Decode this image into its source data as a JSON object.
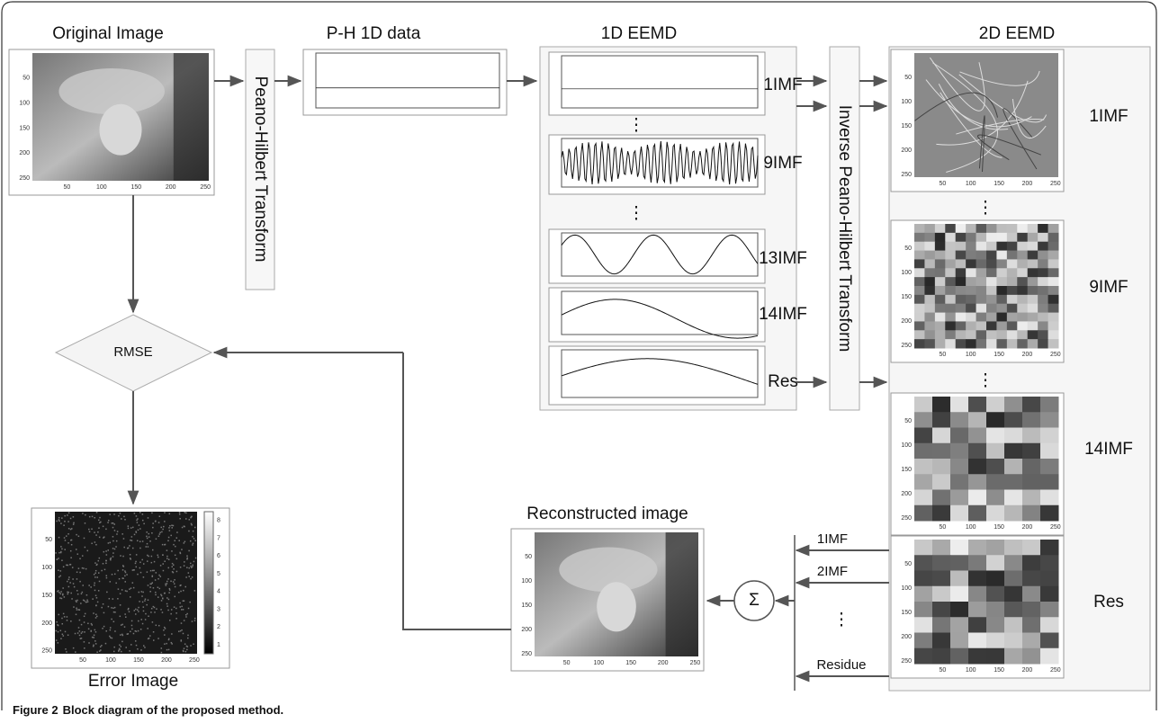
{
  "original_image": {
    "title": "Original Image"
  },
  "peano_hilbert": {
    "label": "Peano-Hilbert Transform"
  },
  "ph_1d_data": {
    "title": "P-H 1D data"
  },
  "eemd_1d": {
    "title": "1D EEMD",
    "components": [
      "1IMF",
      "9IMF",
      "13IMF",
      "14IMF",
      "Res"
    ]
  },
  "inverse_peano_hilbert": {
    "label": "Inverse Peano-Hilbert Transform"
  },
  "eemd_2d": {
    "title": "2D EEMD",
    "components": [
      "1IMF",
      "9IMF",
      "14IMF",
      "Res"
    ]
  },
  "ellipsis": "⋮",
  "sum": {
    "symbol": "Σ",
    "inputs": [
      "1IMF",
      "2IMF",
      "Residue"
    ]
  },
  "reconstructed_image": {
    "title": "Reconstructed image"
  },
  "rmse": {
    "label": "RMSE"
  },
  "error_image": {
    "title": "Error Image",
    "colorbar_ticks": [
      "1",
      "2",
      "3",
      "4",
      "5",
      "6",
      "7",
      "8"
    ]
  },
  "image_ticks": [
    "50",
    "100",
    "150",
    "200",
    "250"
  ],
  "caption": {
    "label": "Figure 2",
    "text": "Block diagram of the proposed method."
  }
}
